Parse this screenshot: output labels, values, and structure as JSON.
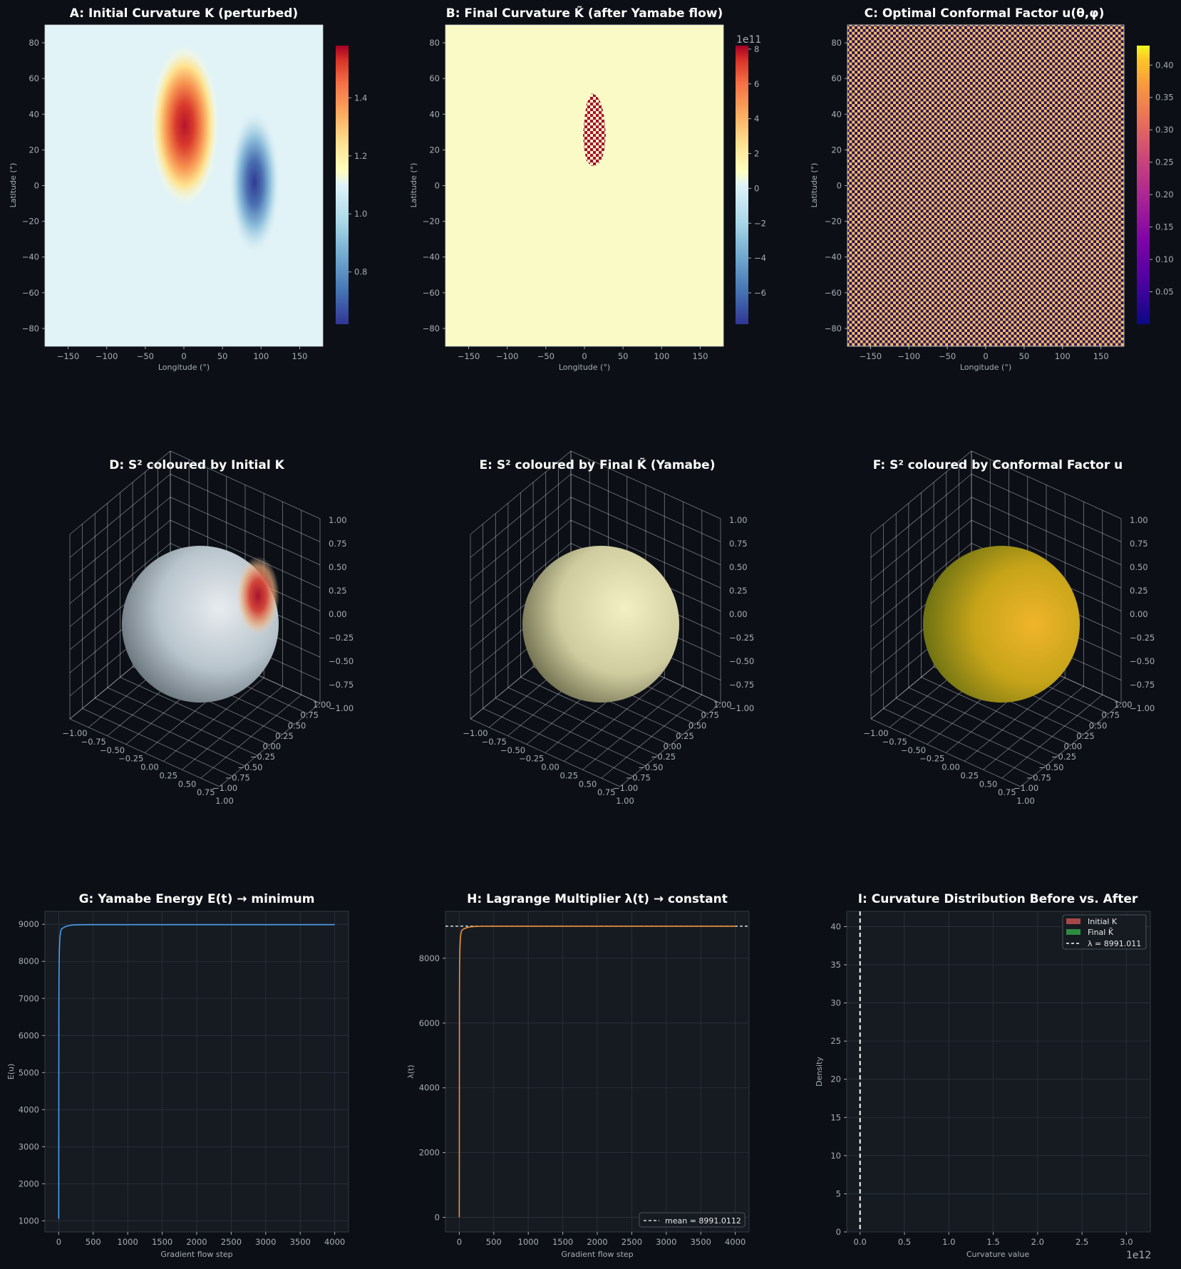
{
  "panels": {
    "A": {
      "title": "A: Initial Curvature K (perturbed)",
      "xlabel": "Longitude (°)",
      "ylabel": "Latitude (°)",
      "colorbar_ticks": [
        "0.8",
        "1.0",
        "1.2",
        "1.4"
      ],
      "colormap": "RdYlBu_r"
    },
    "B": {
      "title": "B: Final Curvature K̃ (after Yamabe flow)",
      "xlabel": "Longitude (°)",
      "ylabel": "Latitude (°)",
      "colorbar_ticks": [
        "−6",
        "−4",
        "−2",
        "0",
        "2",
        "4",
        "6",
        "8"
      ],
      "colorbar_exponent": "1e11",
      "colormap": "RdYlBu_r"
    },
    "C": {
      "title": "C: Optimal Conformal Factor  u(θ,φ)",
      "xlabel": "Longitude (°)",
      "ylabel": "Latitude (°)",
      "colorbar_ticks": [
        "0.05",
        "0.10",
        "0.15",
        "0.20",
        "0.25",
        "0.30",
        "0.35",
        "0.40"
      ],
      "colormap": "plasma"
    },
    "D": {
      "title": "D: S² coloured by Initial K"
    },
    "E": {
      "title": "E: S² coloured by Final K̃ (Yamabe)"
    },
    "F": {
      "title": "F: S² coloured by Conformal Factor u"
    },
    "G": {
      "title": "G: Yamabe Energy  E(t) → minimum",
      "xlabel": "Gradient flow step",
      "ylabel": "E(u)"
    },
    "H": {
      "title": "H: Lagrange Multiplier λ(t) → constant",
      "xlabel": "Gradient flow step",
      "ylabel": "λ(t)",
      "legend": "mean = 8991.0112"
    },
    "I": {
      "title": "I: Curvature Distribution Before vs. After",
      "xlabel": "Curvature value",
      "ylabel": "Density",
      "x_exponent": "1e12",
      "legend": [
        "Initial K",
        "Final K̃",
        "λ = 8991.011"
      ]
    }
  },
  "map_axes": {
    "x_ticks": [
      "−150",
      "−100",
      "−50",
      "0",
      "50",
      "100",
      "150"
    ],
    "y_ticks": [
      "80",
      "60",
      "40",
      "20",
      "0",
      "−20",
      "−40",
      "−60",
      "−80"
    ]
  },
  "sphere_axes": {
    "z_ticks": [
      "1.00",
      "0.75",
      "0.50",
      "0.25",
      "0.00",
      "−0.25",
      "−0.50",
      "−0.75",
      "−1.00"
    ],
    "x_ticks": [
      "−1.00",
      "−0.75",
      "−0.50",
      "−0.25",
      "0.00",
      "0.25",
      "0.50",
      "0.75",
      "1.00"
    ],
    "y_ticks": [
      "1.00",
      "0.75",
      "0.50",
      "0.25",
      "0.00",
      "−0.25",
      "−0.50",
      "−0.75",
      "−1.00"
    ]
  },
  "colors": {
    "background": "#0c1016",
    "plot_bg": "#161b22",
    "energy_line": "#4a9eef",
    "lambda_line": "#f0913a",
    "initial_hist": "#c0504d",
    "final_hist": "#2e8b3e",
    "map_b_bg": "#fafac6",
    "map_b_blob": "#a50f26"
  },
  "chart_data": [
    {
      "type": "heatmap",
      "panel": "A",
      "title": "A: Initial Curvature K (perturbed)",
      "x_range": [
        -180,
        180
      ],
      "y_range": [
        -90,
        90
      ],
      "value_range": [
        0.62,
        1.58
      ],
      "baseline": 0.95,
      "features": [
        {
          "kind": "peak",
          "lon": 0,
          "lat": 30,
          "value": 1.55
        },
        {
          "kind": "trough",
          "lon": 90,
          "lat": 0,
          "value": 0.62
        }
      ]
    },
    {
      "type": "heatmap",
      "panel": "B",
      "title": "B: Final Curvature K̃ (after Yamabe flow)",
      "x_range": [
        -180,
        180
      ],
      "y_range": [
        -90,
        90
      ],
      "value_range": [
        -780000000000.0,
        820000000000.0
      ],
      "background_value": 0,
      "features": [
        {
          "kind": "checkered_blob",
          "lon": 12,
          "lat": 30,
          "value": 800000000000.0
        }
      ]
    },
    {
      "type": "heatmap",
      "panel": "C",
      "title": "C: Optimal Conformal Factor  u(θ,φ)",
      "x_range": [
        -180,
        180
      ],
      "y_range": [
        -90,
        90
      ],
      "value_range": [
        0.0,
        0.43
      ],
      "pattern": "checkerboard",
      "values_alternating": [
        0.0,
        0.35
      ]
    },
    {
      "type": "line",
      "panel": "G",
      "title": "G: Yamabe Energy  E(t) → minimum",
      "xlabel": "Gradient flow step",
      "ylabel": "E(u)",
      "x_ticks": [
        0,
        500,
        1000,
        1500,
        2000,
        2500,
        3000,
        3500,
        4000
      ],
      "y_ticks": [
        1000,
        2000,
        3000,
        4000,
        5000,
        6000,
        7000,
        8000,
        9000
      ],
      "xlim": [
        -200,
        4200
      ],
      "ylim": [
        700,
        9350
      ],
      "x": [
        0,
        2,
        5,
        10,
        15,
        20,
        30,
        40,
        60,
        80,
        100,
        150,
        200,
        300,
        500,
        1000,
        2000,
        3000,
        4000
      ],
      "values": [
        1050,
        6700,
        7700,
        8300,
        8550,
        8700,
        8820,
        8870,
        8900,
        8920,
        8940,
        8965,
        8980,
        8988,
        8990,
        8991,
        8991,
        8991,
        8991
      ]
    },
    {
      "type": "line",
      "panel": "H",
      "title": "H: Lagrange Multiplier λ(t) → constant",
      "xlabel": "Gradient flow step",
      "ylabel": "λ(t)",
      "x_ticks": [
        0,
        500,
        1000,
        1500,
        2000,
        2500,
        3000,
        3500,
        4000
      ],
      "y_ticks": [
        0,
        2000,
        4000,
        6000,
        8000
      ],
      "xlim": [
        -200,
        4200
      ],
      "ylim": [
        -450,
        9450
      ],
      "x": [
        0,
        2,
        5,
        10,
        15,
        20,
        30,
        40,
        60,
        80,
        100,
        150,
        200,
        300,
        500,
        1000,
        2000,
        3000,
        4000
      ],
      "values": [
        0,
        6700,
        7700,
        8300,
        8550,
        8700,
        8820,
        8870,
        8900,
        8920,
        8940,
        8965,
        8980,
        8988,
        8990,
        8991,
        8991,
        8991,
        8991
      ],
      "hline": 8991.0112
    },
    {
      "type": "bar",
      "panel": "I",
      "title": "I: Curvature Distribution Before vs. After",
      "xlabel": "Curvature value",
      "ylabel": "Density",
      "x_ticks": [
        0.0,
        0.5,
        1.0,
        1.5,
        2.0,
        2.5,
        3.0
      ],
      "x_scale": 1000000000000.0,
      "y_ticks": [
        0,
        5,
        10,
        15,
        20,
        25,
        30,
        35,
        40
      ],
      "xlim": [
        -0.15,
        3.27
      ],
      "ylim": [
        0,
        42
      ],
      "vline": 8991.011,
      "series": [
        {
          "name": "Initial K",
          "values": []
        },
        {
          "name": "Final K̃",
          "values": []
        }
      ]
    }
  ]
}
